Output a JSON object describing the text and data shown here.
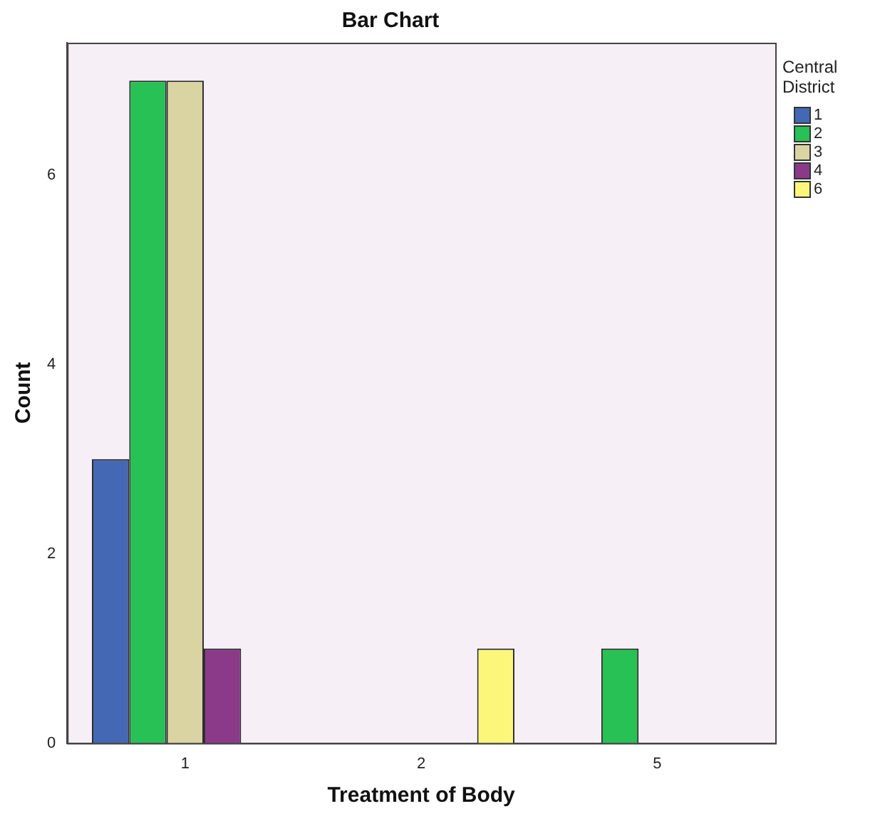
{
  "chart_data": {
    "type": "bar",
    "title": "Bar Chart",
    "xlabel": "Treatment of Body",
    "ylabel": "Count",
    "legend_title": "Central District",
    "legend": "right",
    "grid": false,
    "categories": [
      "1",
      "2",
      "5"
    ],
    "series": [
      {
        "name": "1",
        "color": "#4568b5",
        "values": [
          3,
          null,
          null
        ]
      },
      {
        "name": "2",
        "color": "#27c155",
        "values": [
          7,
          null,
          1
        ]
      },
      {
        "name": "3",
        "color": "#dad4a3",
        "values": [
          7,
          null,
          null
        ]
      },
      {
        "name": "4",
        "color": "#8b3a8a",
        "values": [
          1,
          null,
          null
        ]
      },
      {
        "name": "6",
        "color": "#fcf67a",
        "values": [
          null,
          1,
          null
        ]
      }
    ],
    "ylim": [
      0,
      7.4
    ],
    "yticks": [
      0,
      2,
      4,
      6
    ]
  }
}
